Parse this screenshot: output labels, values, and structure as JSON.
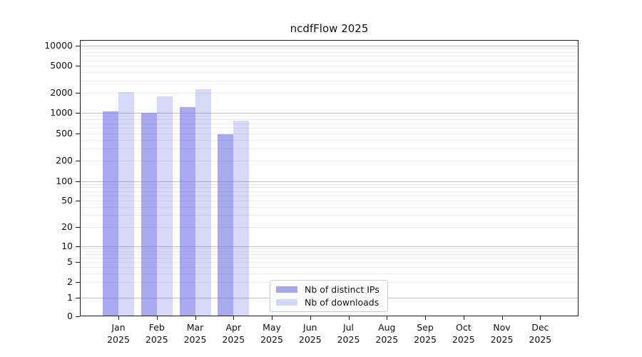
{
  "title": "ncdfFlow 2025",
  "chart_data": {
    "type": "bar",
    "title": "ncdfFlow 2025",
    "categories": [
      "Jan",
      "Feb",
      "Mar",
      "Apr",
      "May",
      "Jun",
      "Jul",
      "Aug",
      "Sep",
      "Oct",
      "Nov",
      "Dec"
    ],
    "year": "2025",
    "series": [
      {
        "name": "Nb of distinct IPs",
        "color": "#a7a7f0",
        "color_rgba": "rgba(121,121,232,0.64)",
        "values": [
          1040,
          1010,
          1230,
          480,
          null,
          null,
          null,
          null,
          null,
          null,
          null,
          null
        ]
      },
      {
        "name": "Nb of downloads",
        "color": "#d6d6f8",
        "color_rgba": "rgba(121,121,232,0.30)",
        "values": [
          2050,
          1750,
          2250,
          770,
          null,
          null,
          null,
          null,
          null,
          null,
          null,
          null
        ]
      }
    ],
    "y_axis": {
      "scale": "log",
      "ticks": [
        0,
        1,
        2,
        5,
        10,
        20,
        50,
        100,
        200,
        500,
        1000,
        2000,
        5000,
        10000
      ],
      "tick_labels": [
        "0",
        "1",
        "2",
        "5",
        "10",
        "20",
        "50",
        "100",
        "200",
        "500",
        "1000",
        "2000",
        "5000",
        "10000"
      ]
    },
    "x_axis": {
      "tick_labels_line1": [
        "Jan",
        "Feb",
        "Mar",
        "Apr",
        "May",
        "Jun",
        "Jul",
        "Aug",
        "Sep",
        "Oct",
        "Nov",
        "Dec"
      ],
      "tick_labels_line2": [
        "2025",
        "2025",
        "2025",
        "2025",
        "2025",
        "2025",
        "2025",
        "2025",
        "2025",
        "2025",
        "2025",
        "2025"
      ]
    },
    "legend": {
      "entries": [
        "Nb of distinct IPs",
        "Nb of downloads"
      ],
      "position": "lower-center-inside"
    },
    "grid": "horizontal major+minor, log minors"
  }
}
